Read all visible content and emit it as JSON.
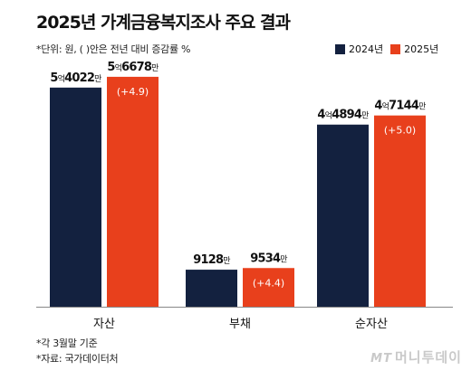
{
  "title": "2025년 가계금융복지조사 주요 결과",
  "subtitle": "*단위: 원, ( )안은 전년 대비 증감률 %",
  "footnotes": [
    "*각 3월말 기준",
    "*자료: 국가데이터처"
  ],
  "logo": {
    "mark": "MT",
    "name": "머니투데이"
  },
  "colors": {
    "s2024": "#13213f",
    "s2025": "#e8401c"
  },
  "chart_data": {
    "type": "bar",
    "categories": [
      "자산",
      "부채",
      "순자산"
    ],
    "series": [
      {
        "name": "2024년",
        "values": [
          540220000,
          91280000,
          448940000
        ]
      },
      {
        "name": "2025년",
        "values": [
          566780000,
          95340000,
          471440000
        ]
      }
    ],
    "value_labels": {
      "2024년": [
        {
          "big1": "5",
          "unit1": "억",
          "big2": "4022",
          "unit2": "만"
        },
        {
          "big1": "",
          "unit1": "",
          "big2": "9128",
          "unit2": "만"
        },
        {
          "big1": "4",
          "unit1": "억",
          "big2": "4894",
          "unit2": "만"
        }
      ],
      "2025년": [
        {
          "big1": "5",
          "unit1": "억",
          "big2": "6678",
          "unit2": "만"
        },
        {
          "big1": "",
          "unit1": "",
          "big2": "9534",
          "unit2": "만"
        },
        {
          "big1": "4",
          "unit1": "억",
          "big2": "7144",
          "unit2": "만"
        }
      ]
    },
    "changes": [
      "(+4.9)",
      "(+4.4)",
      "(+5.0)"
    ],
    "legend": [
      "2024년",
      "2025년"
    ],
    "legend_position": "top-right",
    "ylim": [
      0,
      600000000
    ],
    "grid": false
  }
}
